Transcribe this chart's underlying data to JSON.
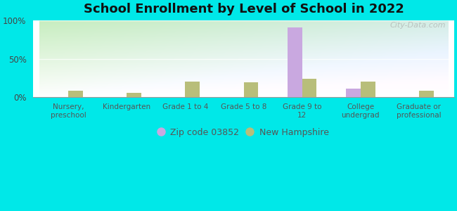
{
  "title": "School Enrollment by Level of School in 2022",
  "categories": [
    "Nursery,\npreschool",
    "Kindergarten",
    "Grade 1 to 4",
    "Grade 5 to 8",
    "Grade 9 to\n12",
    "College\nundergrad",
    "Graduate or\nprofessional"
  ],
  "zip_values": [
    0,
    0,
    0,
    0,
    91,
    11,
    0
  ],
  "nh_values": [
    8,
    6,
    20,
    19,
    24,
    20,
    8
  ],
  "zip_color": "#c9a8e0",
  "nh_color": "#b8be7a",
  "background_outer": "#00e8e8",
  "grad_top": "#c8eec0",
  "grad_bottom": "#f0fdf0",
  "grad_right": "#d8f0f8",
  "title_fontsize": 13,
  "ylim": [
    0,
    100
  ],
  "yticks": [
    0,
    50,
    100
  ],
  "ytick_labels": [
    "0%",
    "50%",
    "100%"
  ],
  "legend_zip_label": "Zip code 03852",
  "legend_nh_label": "New Hampshire",
  "watermark": "City-Data.com",
  "bar_width": 0.25
}
